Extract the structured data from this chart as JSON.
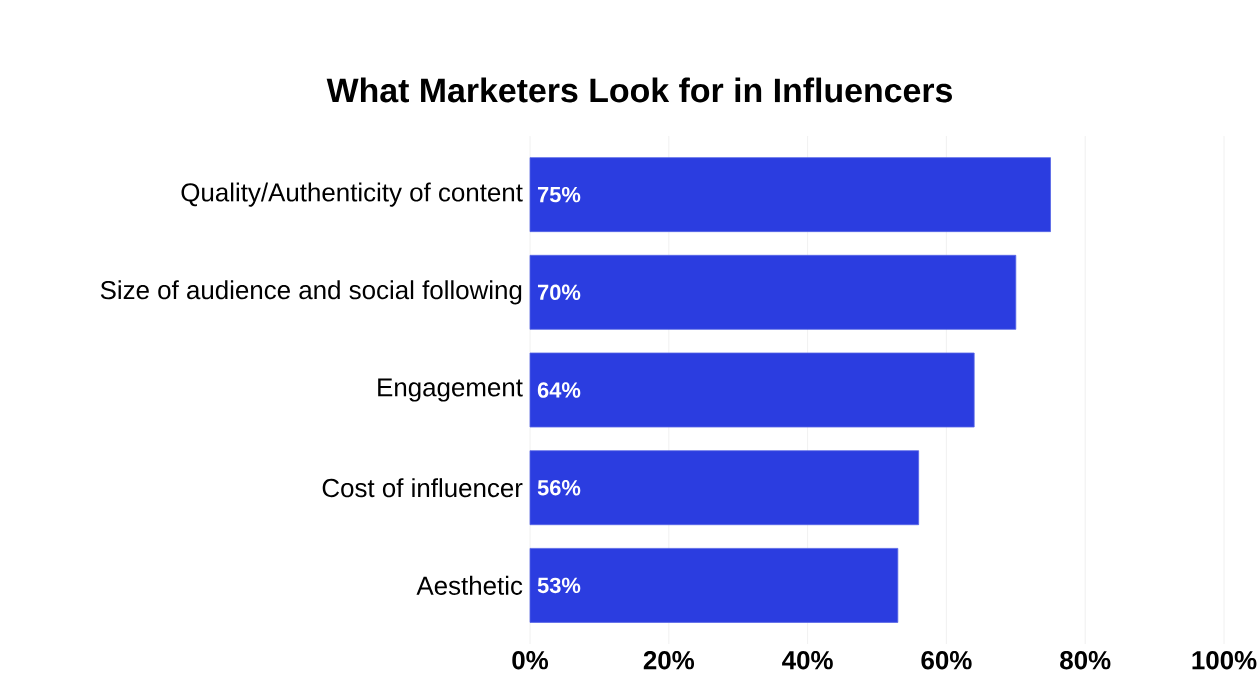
{
  "chart_data": {
    "type": "bar",
    "orientation": "horizontal",
    "title": "What Marketers Look for in Influencers",
    "categories": [
      "Quality/Authenticity of content",
      "Size of audience and social following",
      "Engagement",
      "Cost of influencer",
      "Aesthetic"
    ],
    "values": [
      75,
      70,
      64,
      56,
      53
    ],
    "value_labels": [
      "75%",
      "70%",
      "64%",
      "56%",
      "53%"
    ],
    "color": "#2b3de0",
    "xlim": [
      0,
      100
    ],
    "xticks": [
      {
        "value": 0,
        "label": "0%"
      },
      {
        "value": 20,
        "label": "20%"
      },
      {
        "value": 40,
        "label": "40%"
      },
      {
        "value": 60,
        "label": "60%"
      },
      {
        "value": 80,
        "label": "80%"
      },
      {
        "value": 100,
        "label": "100%"
      }
    ],
    "grid": "x"
  }
}
